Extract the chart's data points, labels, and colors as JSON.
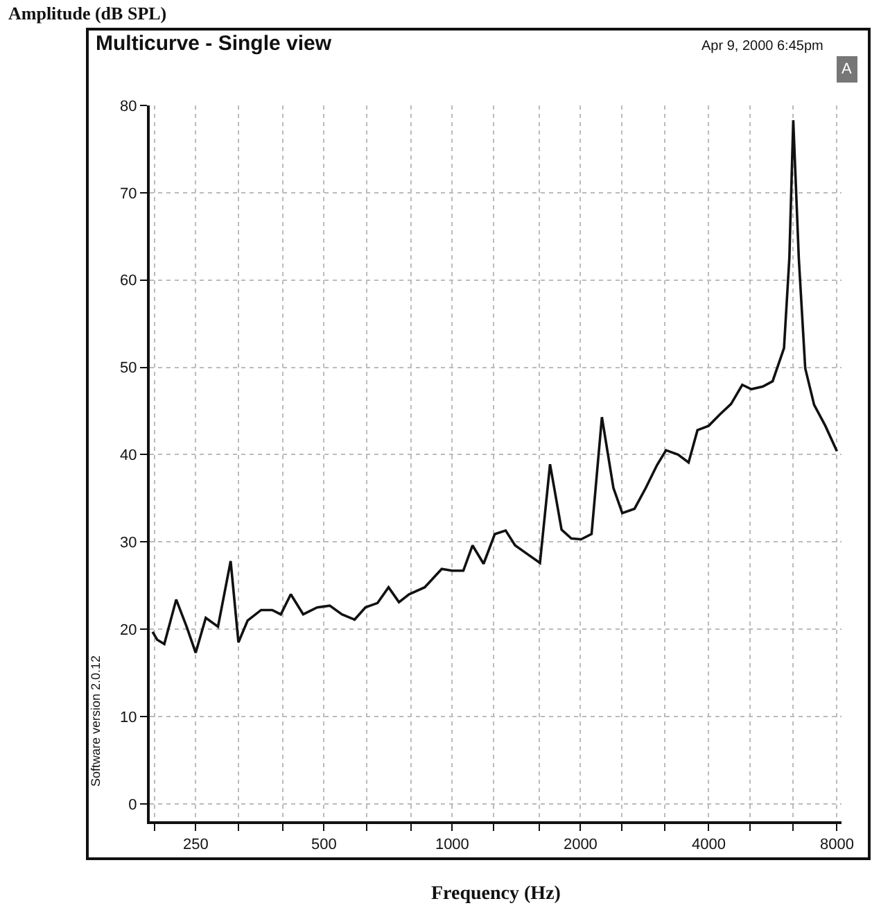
{
  "chart_data": {
    "type": "line",
    "title": "Multicurve - Single view",
    "ylabel": "Amplitude (dB SPL)",
    "xlabel": "Frequency (Hz)",
    "annotations": [
      "Apr 9, 2000 6:45pm",
      "A",
      "Software version 2.0.12"
    ],
    "log": "x",
    "grid": true,
    "marker": "none",
    "line_style": "solid",
    "xlim": [
      195,
      8200
    ],
    "ylim": [
      -2,
      80
    ],
    "xticks": [
      {
        "value": 200,
        "label": null
      },
      250,
      {
        "value": 315,
        "label": null
      },
      {
        "value": 400,
        "label": null
      },
      500,
      {
        "value": 630,
        "label": null
      },
      {
        "value": 800,
        "label": null
      },
      1000,
      {
        "value": 1250,
        "label": null
      },
      {
        "value": 1600,
        "label": null
      },
      2000,
      {
        "value": 2500,
        "label": null
      },
      {
        "value": 3150,
        "label": null
      },
      4000,
      {
        "value": 5000,
        "label": null
      },
      {
        "value": 6300,
        "label": null
      },
      8000
    ],
    "yticks": [
      0,
      10,
      20,
      30,
      40,
      50,
      60,
      70,
      80
    ],
    "series": [
      {
        "color": "#111111",
        "x": [
          198,
          203,
          211,
          225,
          238,
          250,
          264,
          282,
          302,
          315,
          331,
          356,
          378,
          396,
          418,
          447,
          482,
          516,
          551,
          590,
          626,
          668,
          709,
          750,
          792,
          862,
          945,
          1000,
          1062,
          1116,
          1185,
          1259,
          1335,
          1405,
          1512,
          1607,
          1697,
          1806,
          1904,
          2007,
          2124,
          2246,
          2390,
          2508,
          2679,
          2848,
          3025,
          3176,
          3389,
          3588,
          3765,
          4000,
          4249,
          4514,
          4796,
          5037,
          5358,
          5651,
          6010,
          6186,
          6318,
          6510,
          6740,
          7072,
          7514,
          8000
        ],
        "values": [
          19.7,
          18.8,
          18.3,
          23.4,
          20.3,
          17.3,
          21.3,
          20.3,
          27.8,
          18.5,
          21.0,
          22.2,
          22.2,
          21.7,
          24.0,
          21.7,
          22.5,
          22.7,
          21.7,
          21.1,
          22.5,
          23.0,
          24.8,
          23.1,
          24.0,
          24.8,
          26.9,
          26.7,
          26.7,
          29.6,
          27.5,
          30.9,
          31.3,
          29.6,
          28.5,
          27.6,
          38.9,
          31.4,
          30.4,
          30.3,
          30.9,
          44.3,
          36.2,
          33.3,
          33.8,
          36.2,
          38.8,
          40.5,
          40.0,
          39.1,
          42.8,
          43.3,
          44.6,
          45.8,
          48.0,
          47.5,
          47.8,
          48.4,
          52.2,
          62.5,
          78.3,
          62.5,
          49.9,
          45.7,
          43.3,
          40.4
        ]
      }
    ]
  }
}
